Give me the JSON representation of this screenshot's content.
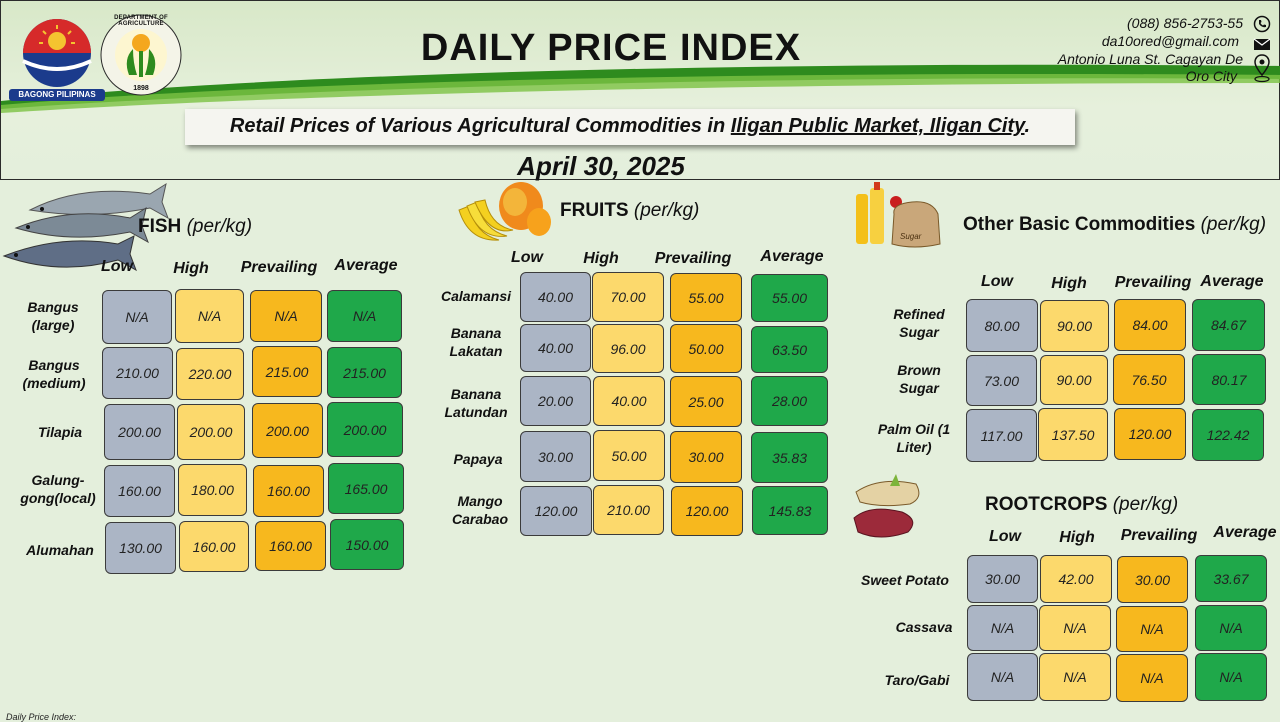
{
  "header": {
    "title": "DAILY PRICE INDEX",
    "subtitle_pre": "Retail Prices of Various Agricultural Commodities  in ",
    "subtitle_place": "Iligan Public Market, Iligan City",
    "subtitle_post": ".",
    "date": "April 30,  2025",
    "logo_left_text": "BAGONG PILIPINAS",
    "logo_right_text": "DEPARTMENT OF AGRICULTURE",
    "logo_right_year": "1898"
  },
  "contact": {
    "phone": "(088) 856-2753-55",
    "email": "da10ored@gmail.com",
    "address_line1": "Antonio Luna St. Cagayan De",
    "address_line2": "Oro City"
  },
  "icons": [
    "phone-icon",
    "email-icon",
    "location-icon"
  ],
  "columns": {
    "low": "Low",
    "high": "High",
    "prevailing": "Prevailing",
    "average": "Average"
  },
  "fish": {
    "title": "FISH",
    "unit": "(per/kg)",
    "rows": [
      {
        "name": "Bangus (large)",
        "low": "N/A",
        "high": "N/A",
        "prevailing": "N/A",
        "average": "N/A"
      },
      {
        "name": "Bangus (medium)",
        "low": "210.00",
        "high": "220.00",
        "prevailing": "215.00",
        "average": "215.00"
      },
      {
        "name": "Tilapia",
        "low": "200.00",
        "high": "200.00",
        "prevailing": "200.00",
        "average": "200.00"
      },
      {
        "name": "Galung-gong(local)",
        "low": "160.00",
        "high": "180.00",
        "prevailing": "160.00",
        "average": "165.00"
      },
      {
        "name": "Alumahan",
        "low": "130.00",
        "high": "160.00",
        "prevailing": "160.00",
        "average": "150.00"
      }
    ]
  },
  "fruits": {
    "title": "FRUITS",
    "unit": "(per/kg)",
    "rows": [
      {
        "name": "Calamansi",
        "low": "40.00",
        "high": "70.00",
        "prevailing": "55.00",
        "average": "55.00"
      },
      {
        "name": "Banana Lakatan",
        "low": "40.00",
        "high": "96.00",
        "prevailing": "50.00",
        "average": "63.50"
      },
      {
        "name": "Banana Latundan",
        "low": "20.00",
        "high": "40.00",
        "prevailing": "25.00",
        "average": "28.00"
      },
      {
        "name": "Papaya",
        "low": "30.00",
        "high": "50.00",
        "prevailing": "30.00",
        "average": "35.83"
      },
      {
        "name": "Mango Carabao",
        "low": "120.00",
        "high": "210.00",
        "prevailing": "120.00",
        "average": "145.83"
      }
    ]
  },
  "basic": {
    "title": "Other Basic Commodities",
    "unit": "(per/kg)",
    "sugar_label": "Sugar",
    "rows": [
      {
        "name": "Refined Sugar",
        "low": "80.00",
        "high": "90.00",
        "prevailing": "84.00",
        "average": "84.67"
      },
      {
        "name": "Brown Sugar",
        "low": "73.00",
        "high": "90.00",
        "prevailing": "76.50",
        "average": "80.17"
      },
      {
        "name": "Palm Oil (1 Liter)",
        "low": "117.00",
        "high": "137.50",
        "prevailing": "120.00",
        "average": "122.42"
      }
    ]
  },
  "rootcrops": {
    "title": "ROOTCROPS",
    "unit": "(per/kg)",
    "rows": [
      {
        "name": "Sweet Potato",
        "low": "30.00",
        "high": "42.00",
        "prevailing": "30.00",
        "average": "33.67"
      },
      {
        "name": "Cassava",
        "low": "N/A",
        "high": "N/A",
        "prevailing": "N/A",
        "average": "N/A"
      },
      {
        "name": "Taro/Gabi",
        "low": "N/A",
        "high": "N/A",
        "prevailing": "N/A",
        "average": "N/A"
      }
    ]
  },
  "footer": "Daily Price Index:",
  "colors": {
    "low": "#abb5c5",
    "high": "#fcd96c",
    "prevailing": "#f7b81e",
    "average": "#1fa84a",
    "background": "#e4efdc"
  }
}
